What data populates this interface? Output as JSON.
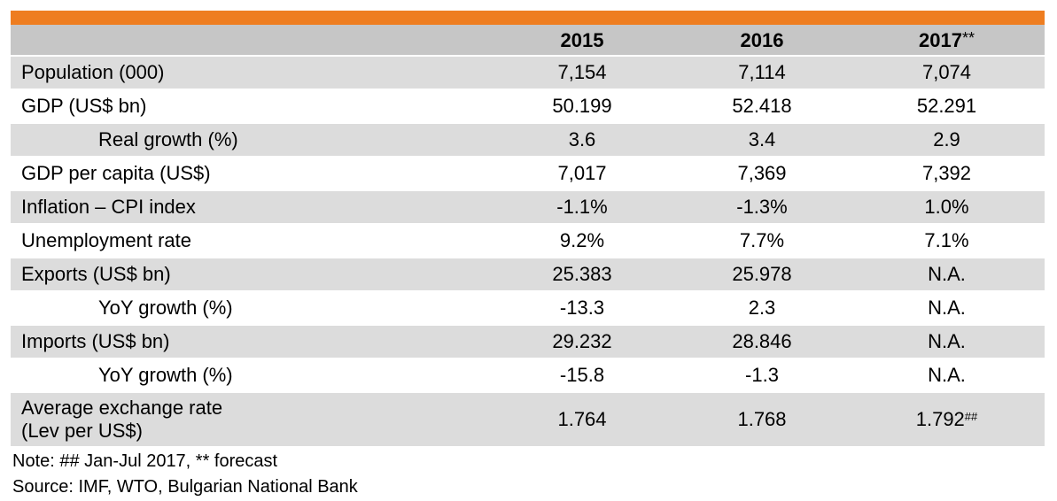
{
  "table": {
    "columns": [
      "2015",
      "2016",
      "2017"
    ],
    "forecast_marker": "**",
    "rows": [
      {
        "label": "Population  (000)",
        "values": [
          "7,154",
          "7,114",
          "7,074"
        ],
        "indent": false
      },
      {
        "label": "GDP (US$ bn)",
        "values": [
          "50.199",
          "52.418",
          "52.291"
        ],
        "indent": false
      },
      {
        "label": "Real growth (%)",
        "values": [
          "3.6",
          "3.4",
          "2.9"
        ],
        "indent": true
      },
      {
        "label": "GDP per capita (US$)",
        "values": [
          "7,017",
          "7,369",
          "7,392"
        ],
        "indent": false
      },
      {
        "label": "Inflation – CPI index",
        "values": [
          "-1.1%",
          "-1.3%",
          "1.0%"
        ],
        "indent": false
      },
      {
        "label": "Unemployment rate",
        "values": [
          "9.2%",
          "7.7%",
          "7.1%"
        ],
        "indent": false
      },
      {
        "label": "Exports  (US$ bn)",
        "values": [
          "25.383",
          "25.978",
          "N.A."
        ],
        "indent": false
      },
      {
        "label": "YoY growth  (%)",
        "values": [
          "-13.3",
          "2.3",
          "N.A."
        ],
        "indent": true
      },
      {
        "label": "Imports (US$ bn)",
        "values": [
          "29.232",
          "28.846",
          "N.A."
        ],
        "indent": false
      },
      {
        "label": "YoY growth  (%)",
        "values": [
          "-15.8",
          "-1.3",
          "N.A."
        ],
        "indent": true
      },
      {
        "label_line1": "Average  exchange  rate",
        "label_line2": "(Lev per US$)",
        "values": [
          "1.764",
          "1.768",
          "1.792"
        ],
        "value_footnote": "##"
      }
    ]
  },
  "notes": {
    "note": "Note:  ## Jan-Jul 2017, ** forecast",
    "source": "Source: IMF, WTO, Bulgarian National Bank"
  },
  "colors": {
    "accent_bar": "#ee7d20",
    "header_bg": "#c6c6c6",
    "shaded_row_bg": "#dcdcdc"
  }
}
